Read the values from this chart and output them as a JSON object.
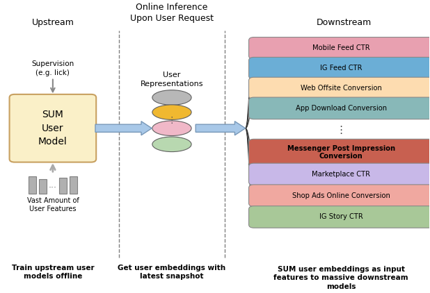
{
  "title_upstream": "Upstream",
  "title_online": "Online Inference\nUpon User Request",
  "title_downstream": "Downstream",
  "sum_box_label": "SUM\nUser\nModel",
  "sum_box_color": "#FAF0C8",
  "sum_box_edge": "#C8A060",
  "supervision_text": "Supervision\n(e.g. lick)",
  "features_text": "Vast Amount of\nUser Features",
  "user_repr_text": "User\nRepresentations",
  "caption_upstream": "Train upstream user\nmodels offline",
  "caption_middle": "Get user embeddings with\nlatest snapshot",
  "caption_downstream": "SUM user embeddings as input\nfeatures to massive downstream\nmodels",
  "downstream_boxes": [
    {
      "label": "Mobile Feed CTR",
      "color": "#E8A0B0",
      "bold": false
    },
    {
      "label": "IG Feed CTR",
      "color": "#6BAED6",
      "bold": false
    },
    {
      "label": "Web Offsite Conversion",
      "color": "#FDDCB0",
      "bold": false
    },
    {
      "label": "App Download Conversion",
      "color": "#88B8B8",
      "bold": false
    },
    {
      "label": "Messenger Post Impression\nConversion",
      "color": "#C86050",
      "bold": true
    },
    {
      "label": "Marketplace CTR",
      "color": "#C8B8E8",
      "bold": false
    },
    {
      "label": "Shop Ads Online Conversion",
      "color": "#F0A8A0",
      "bold": false
    },
    {
      "label": "IG Story CTR",
      "color": "#A8C898",
      "bold": false
    }
  ],
  "ellipse_colors": [
    "#B8B8B8",
    "#F0B830",
    "#F0B8C8",
    "#B8D8B0"
  ],
  "dashed_line_x": [
    0.27,
    0.52
  ],
  "arrow_color": "#A8C8E8",
  "arrow_edge_color": "#7898B8"
}
